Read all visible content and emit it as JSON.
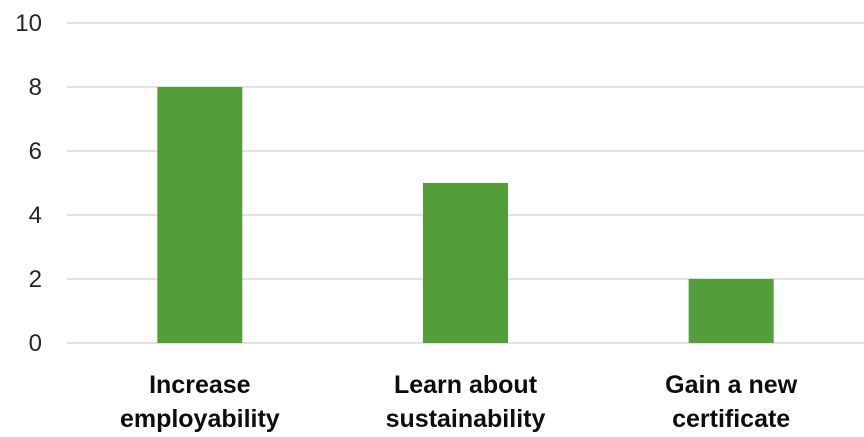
{
  "chart_data": {
    "type": "bar",
    "title": "",
    "xlabel": "",
    "ylabel": "",
    "categories": [
      [
        "Increase",
        "employability"
      ],
      [
        "Learn about",
        "sustainability"
      ],
      [
        "Gain a new",
        "certificate"
      ]
    ],
    "values": [
      8,
      5,
      2
    ],
    "ylim": [
      0,
      10
    ],
    "yticks": [
      "0",
      "2",
      "4",
      "6",
      "8",
      "10"
    ],
    "grid": true,
    "legend": "none",
    "bar_color": "#539d3b",
    "grid_color": "#d9d9d9"
  }
}
